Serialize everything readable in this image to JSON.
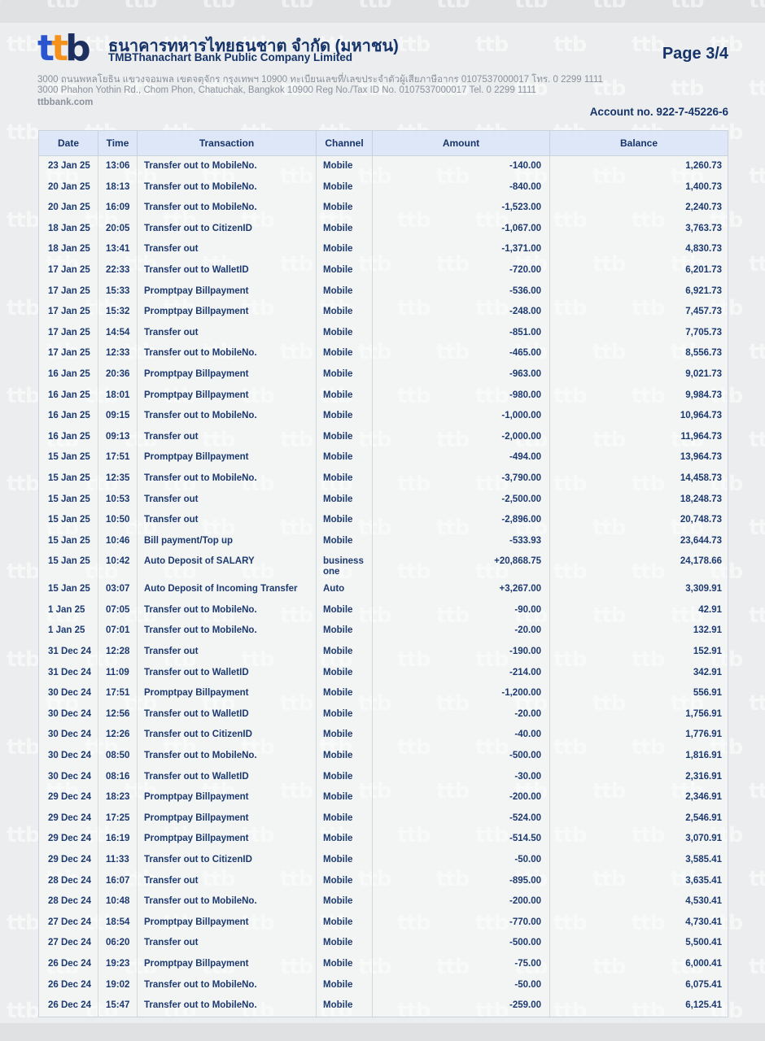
{
  "watermark": {
    "text": "ttb"
  },
  "colors": {
    "navy": "#16346a",
    "row_text": "#1d3a70",
    "logo_blue": "#2b55cf",
    "logo_orange": "#f5921e",
    "logo_navy": "#1c2f5e",
    "header_band": "#dce6f8",
    "address_gray": "#8b929d"
  },
  "header": {
    "logo_letters": [
      "t",
      "t",
      "b"
    ],
    "bank_name_th": "ธนาคารทหารไทยธนชาต จำกัด (มหาชน)",
    "bank_name_en": "TMBThanachart Bank Public Company Limited",
    "page_label": "Page 3/4",
    "address_th": "3000 ถนนพหลโยธิน แขวงจอมพล เขตจตุจักร กรุงเทพฯ 10900 ทะเบียนเลขที่/เลขประจำตัวผู้เสียภาษีอากร 0107537000017 โทร. 0 2299 1111",
    "address_en": "3000 Phahon Yothin Rd., Chom Phon, Chatuchak, Bangkok 10900 Reg No./Tax ID No. 0107537000017 Tel. 0 2299 1111",
    "website": "ttbbank.com",
    "account_label": "Account no. 922-7-45226-6"
  },
  "table": {
    "columns": [
      "Date",
      "Time",
      "Transaction",
      "Channel",
      "Amount",
      "Balance"
    ],
    "rows": [
      [
        "23 Jan 25",
        "13:06",
        "Transfer out to MobileNo.",
        "Mobile",
        "-140.00",
        "1,260.73"
      ],
      [
        "20 Jan 25",
        "18:13",
        "Transfer out to MobileNo.",
        "Mobile",
        "-840.00",
        "1,400.73"
      ],
      [
        "20 Jan 25",
        "16:09",
        "Transfer out to MobileNo.",
        "Mobile",
        "-1,523.00",
        "2,240.73"
      ],
      [
        "18 Jan 25",
        "20:05",
        "Transfer out to CitizenID",
        "Mobile",
        "-1,067.00",
        "3,763.73"
      ],
      [
        "18 Jan 25",
        "13:41",
        "Transfer out",
        "Mobile",
        "-1,371.00",
        "4,830.73"
      ],
      [
        "17 Jan 25",
        "22:33",
        "Transfer out to WalletID",
        "Mobile",
        "-720.00",
        "6,201.73"
      ],
      [
        "17 Jan 25",
        "15:33",
        "Promptpay Billpayment",
        "Mobile",
        "-536.00",
        "6,921.73"
      ],
      [
        "17 Jan 25",
        "15:32",
        "Promptpay Billpayment",
        "Mobile",
        "-248.00",
        "7,457.73"
      ],
      [
        "17 Jan 25",
        "14:54",
        "Transfer out",
        "Mobile",
        "-851.00",
        "7,705.73"
      ],
      [
        "17 Jan 25",
        "12:33",
        "Transfer out to MobileNo.",
        "Mobile",
        "-465.00",
        "8,556.73"
      ],
      [
        "16 Jan 25",
        "20:36",
        "Promptpay Billpayment",
        "Mobile",
        "-963.00",
        "9,021.73"
      ],
      [
        "16 Jan 25",
        "18:01",
        "Promptpay Billpayment",
        "Mobile",
        "-980.00",
        "9,984.73"
      ],
      [
        "16 Jan 25",
        "09:15",
        "Transfer out to MobileNo.",
        "Mobile",
        "-1,000.00",
        "10,964.73"
      ],
      [
        "16 Jan 25",
        "09:13",
        "Transfer out",
        "Mobile",
        "-2,000.00",
        "11,964.73"
      ],
      [
        "15 Jan 25",
        "17:51",
        "Promptpay Billpayment",
        "Mobile",
        "-494.00",
        "13,964.73"
      ],
      [
        "15 Jan 25",
        "12:35",
        "Transfer out to MobileNo.",
        "Mobile",
        "-3,790.00",
        "14,458.73"
      ],
      [
        "15 Jan 25",
        "10:53",
        "Transfer out",
        "Mobile",
        "-2,500.00",
        "18,248.73"
      ],
      [
        "15 Jan 25",
        "10:50",
        "Transfer out",
        "Mobile",
        "-2,896.00",
        "20,748.73"
      ],
      [
        "15 Jan 25",
        "10:46",
        "Bill payment/Top up",
        "Mobile",
        "-533.93",
        "23,644.73"
      ],
      [
        "15 Jan 25",
        "10:42",
        "Auto Deposit of SALARY",
        "business one",
        "+20,868.75",
        "24,178.66"
      ],
      [
        "15 Jan 25",
        "03:07",
        "Auto Deposit of Incoming Transfer",
        "Auto",
        "+3,267.00",
        "3,309.91"
      ],
      [
        "1 Jan 25",
        "07:05",
        "Transfer out to MobileNo.",
        "Mobile",
        "-90.00",
        "42.91"
      ],
      [
        "1 Jan 25",
        "07:01",
        "Transfer out to MobileNo.",
        "Mobile",
        "-20.00",
        "132.91"
      ],
      [
        "31 Dec 24",
        "12:28",
        "Transfer out",
        "Mobile",
        "-190.00",
        "152.91"
      ],
      [
        "31 Dec 24",
        "11:09",
        "Transfer out to WalletID",
        "Mobile",
        "-214.00",
        "342.91"
      ],
      [
        "30 Dec 24",
        "17:51",
        "Promptpay Billpayment",
        "Mobile",
        "-1,200.00",
        "556.91"
      ],
      [
        "30 Dec 24",
        "12:56",
        "Transfer out to WalletID",
        "Mobile",
        "-20.00",
        "1,756.91"
      ],
      [
        "30 Dec 24",
        "12:26",
        "Transfer out to CitizenID",
        "Mobile",
        "-40.00",
        "1,776.91"
      ],
      [
        "30 Dec 24",
        "08:50",
        "Transfer out to MobileNo.",
        "Mobile",
        "-500.00",
        "1,816.91"
      ],
      [
        "30 Dec 24",
        "08:16",
        "Transfer out to WalletID",
        "Mobile",
        "-30.00",
        "2,316.91"
      ],
      [
        "29 Dec 24",
        "18:23",
        "Promptpay Billpayment",
        "Mobile",
        "-200.00",
        "2,346.91"
      ],
      [
        "29 Dec 24",
        "17:25",
        "Promptpay Billpayment",
        "Mobile",
        "-524.00",
        "2,546.91"
      ],
      [
        "29 Dec 24",
        "16:19",
        "Promptpay Billpayment",
        "Mobile",
        "-514.50",
        "3,070.91"
      ],
      [
        "29 Dec 24",
        "11:33",
        "Transfer out to CitizenID",
        "Mobile",
        "-50.00",
        "3,585.41"
      ],
      [
        "28 Dec 24",
        "16:07",
        "Transfer out",
        "Mobile",
        "-895.00",
        "3,635.41"
      ],
      [
        "28 Dec 24",
        "10:48",
        "Transfer out to MobileNo.",
        "Mobile",
        "-200.00",
        "4,530.41"
      ],
      [
        "27 Dec 24",
        "18:54",
        "Promptpay Billpayment",
        "Mobile",
        "-770.00",
        "4,730.41"
      ],
      [
        "27 Dec 24",
        "06:20",
        "Transfer out",
        "Mobile",
        "-500.00",
        "5,500.41"
      ],
      [
        "26 Dec 24",
        "19:23",
        "Promptpay Billpayment",
        "Mobile",
        "-75.00",
        "6,000.41"
      ],
      [
        "26 Dec 24",
        "19:02",
        "Transfer out to MobileNo.",
        "Mobile",
        "-50.00",
        "6,075.41"
      ],
      [
        "26 Dec 24",
        "15:47",
        "Transfer out to MobileNo.",
        "Mobile",
        "-259.00",
        "6,125.41"
      ]
    ]
  }
}
